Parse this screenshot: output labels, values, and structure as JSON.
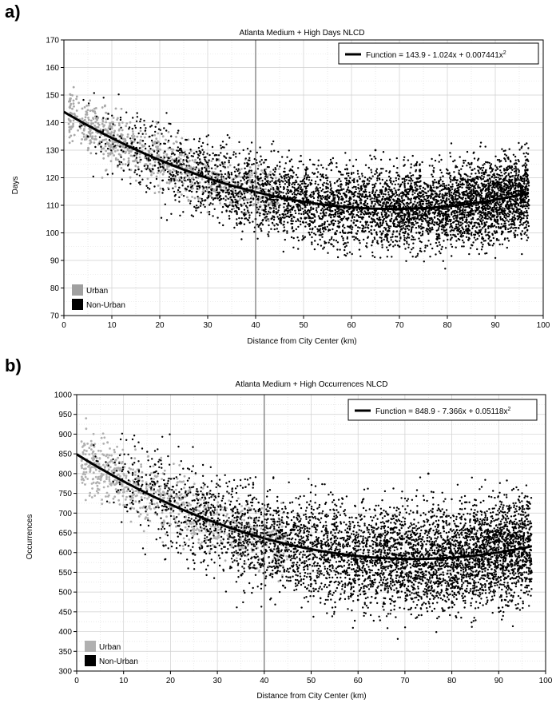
{
  "panels": [
    {
      "label": "a)",
      "chart_data": {
        "type": "scatter",
        "title": "Atlanta Medium + High Days NLCD",
        "xlabel": "Distance from City Center (km)",
        "ylabel": "Days",
        "xlim": [
          0,
          100
        ],
        "ylim": [
          70,
          170
        ],
        "xticks": [
          0,
          10,
          20,
          30,
          40,
          50,
          60,
          70,
          80,
          90,
          100
        ],
        "yticks": [
          70,
          80,
          90,
          100,
          110,
          120,
          130,
          140,
          150,
          160,
          170
        ],
        "grid": true,
        "vertical_reference_line_x": 40,
        "legend_placement": "bottom-left",
        "fit": {
          "label": "Function = 143.9 - 1.024x + 0.007441x",
          "superscript": "2",
          "coefficients": [
            143.9,
            -1.024,
            0.007441
          ],
          "legend_placement": "top-right"
        },
        "series": [
          {
            "name": "Urban",
            "color": "#a8a8a8",
            "x_range": [
              1,
              45
            ],
            "approx_points": 900,
            "spread": 7,
            "sample": [
              [
                2,
                148
              ],
              [
                3,
                141
              ],
              [
                5,
                130
              ],
              [
                6,
                135
              ],
              [
                8,
                120
              ],
              [
                10,
                140
              ],
              [
                12,
                145
              ],
              [
                14,
                128
              ],
              [
                16,
                137
              ],
              [
                18,
                125
              ],
              [
                20,
                132
              ],
              [
                22,
                118
              ],
              [
                24,
                126
              ],
              [
                26,
                112
              ],
              [
                28,
                120
              ],
              [
                30,
                115
              ],
              [
                33,
                118
              ],
              [
                36,
                112
              ],
              [
                40,
                110
              ],
              [
                44,
                121
              ]
            ]
          },
          {
            "name": "Non-Urban",
            "color": "#000000",
            "x_range": [
              3,
              97
            ],
            "approx_points": 5500,
            "spread": 10,
            "sample": [
              [
                5,
                135
              ],
              [
                12,
                130
              ],
              [
                20,
                125
              ],
              [
                28,
                118
              ],
              [
                35,
                112
              ],
              [
                40,
                105
              ],
              [
                45,
                115
              ],
              [
                50,
                98
              ],
              [
                55,
                120
              ],
              [
                60,
                100
              ],
              [
                65,
                130
              ],
              [
                70,
                95
              ],
              [
                75,
                115
              ],
              [
                80,
                105
              ],
              [
                85,
                125
              ],
              [
                90,
                100
              ],
              [
                95,
                118
              ],
              [
                97,
                110
              ]
            ]
          }
        ]
      }
    },
    {
      "label": "b)",
      "chart_data": {
        "type": "scatter",
        "title": "Atlanta Medium + High Occurrences NLCD",
        "xlabel": "Distance from City Center (km)",
        "ylabel": "Occurrences",
        "xlim": [
          0,
          100
        ],
        "ylim": [
          300,
          1000
        ],
        "xticks": [
          0,
          10,
          20,
          30,
          40,
          50,
          60,
          70,
          80,
          90,
          100
        ],
        "yticks": [
          300,
          350,
          400,
          450,
          500,
          550,
          600,
          650,
          700,
          750,
          800,
          850,
          900,
          950,
          1000
        ],
        "grid": true,
        "vertical_reference_line_x": 40,
        "legend_placement": "bottom-left",
        "fit": {
          "label": "Function = 848.9 - 7.366x + 0.05118x",
          "superscript": "2",
          "coefficients": [
            848.9,
            -7.366,
            0.05118
          ],
          "legend_placement": "top-right"
        },
        "series": [
          {
            "name": "Urban",
            "color": "#b0b0b0",
            "x_range": [
              1,
              45
            ],
            "approx_points": 900,
            "spread": 55,
            "sample": [
              [
                2,
                940
              ],
              [
                4,
                820
              ],
              [
                6,
                780
              ],
              [
                8,
                860
              ],
              [
                10,
                720
              ],
              [
                12,
                800
              ],
              [
                15,
                760
              ],
              [
                18,
                840
              ],
              [
                20,
                700
              ],
              [
                22,
                780
              ],
              [
                25,
                660
              ],
              [
                28,
                720
              ],
              [
                30,
                640
              ],
              [
                35,
                690
              ],
              [
                40,
                650
              ],
              [
                44,
                700
              ]
            ]
          },
          {
            "name": "Non-Urban",
            "color": "#000000",
            "x_range": [
              3,
              97
            ],
            "approx_points": 5500,
            "spread": 90,
            "sample": [
              [
                10,
                780
              ],
              [
                20,
                730
              ],
              [
                30,
                680
              ],
              [
                40,
                620
              ],
              [
                45,
                700
              ],
              [
                50,
                520
              ],
              [
                55,
                640
              ],
              [
                60,
                480
              ],
              [
                65,
                700
              ],
              [
                70,
                560
              ],
              [
                75,
                800
              ],
              [
                80,
                520
              ],
              [
                85,
                680
              ],
              [
                90,
                460
              ],
              [
                95,
                600
              ],
              [
                97,
                550
              ]
            ]
          }
        ]
      }
    }
  ]
}
